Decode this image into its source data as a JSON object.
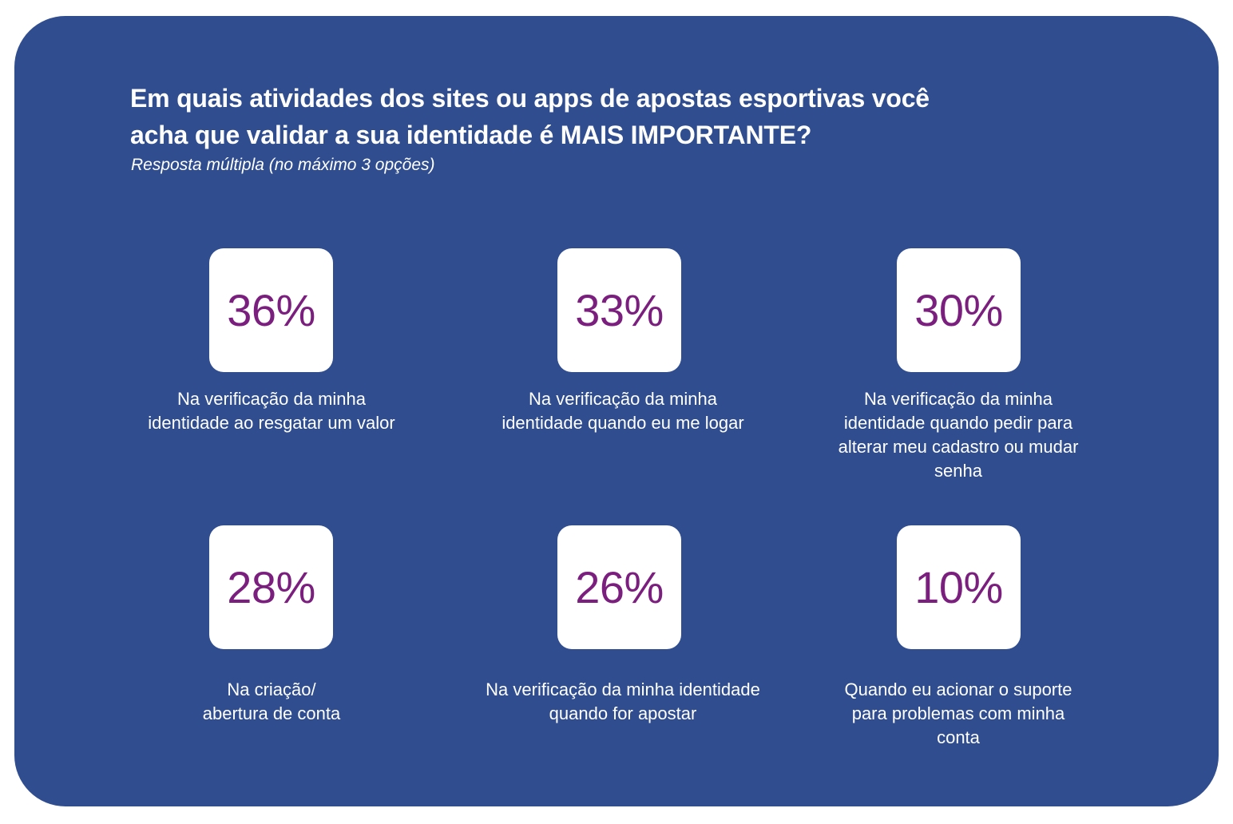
{
  "header": {
    "title_line1": "Em quais atividades dos sites ou apps de apostas esportivas você",
    "title_line2": "acha que validar a sua identidade é MAIS IMPORTANTE?",
    "subtitle": "Resposta múltipla (no máximo 3 opções)"
  },
  "colors": {
    "panel_background": "#2f4d8f",
    "card_background": "#ffffff",
    "stat_value": "#7b1f7e",
    "text": "#ffffff"
  },
  "stats": [
    {
      "value": "36%",
      "label_lines": [
        "Na verificação da minha",
        "identidade ao resgatar um valor"
      ]
    },
    {
      "value": "33%",
      "label_lines": [
        "Na verificação da minha",
        "identidade quando eu me logar"
      ]
    },
    {
      "value": "30%",
      "label_lines": [
        "Na verificação da minha",
        "identidade quando pedir para",
        "alterar meu cadastro ou mudar",
        "senha"
      ]
    },
    {
      "value": "28%",
      "label_lines": [
        "Na criação/",
        "abertura de conta"
      ]
    },
    {
      "value": "26%",
      "label_lines": [
        "Na verificação da minha identidade",
        "quando for apostar"
      ]
    },
    {
      "value": "10%",
      "label_lines": [
        "Quando eu acionar o suporte",
        "para problemas com minha",
        "conta"
      ]
    }
  ]
}
